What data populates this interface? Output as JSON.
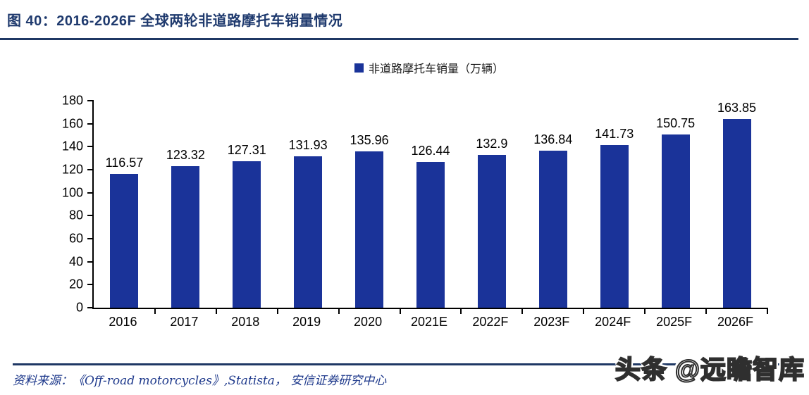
{
  "figure": {
    "title": "图 40：2016-2026F 全球两轮非道路摩托车销量情况",
    "source": "资料来源：《Off-road motorcycles》,Statista， 安信证券研究中心",
    "watermark": "头条 @远瞻智库"
  },
  "colors": {
    "bar": "#1a3399",
    "title_text": "#1f3a6e",
    "rule": "#1f3864",
    "source_text": "#1f3a8c",
    "axis": "#000000"
  },
  "chart_data": {
    "type": "bar",
    "title": "",
    "legend": "非道路摩托车销量（万辆）",
    "legend_position": "top-center",
    "categories": [
      "2016",
      "2017",
      "2018",
      "2019",
      "2020",
      "2021E",
      "2022F",
      "2023F",
      "2024F",
      "2025F",
      "2026F"
    ],
    "values": [
      116.57,
      123.32,
      127.31,
      131.93,
      135.96,
      126.44,
      132.9,
      136.84,
      141.73,
      150.75,
      163.85
    ],
    "ylabel": "",
    "xlabel": "",
    "ylim": [
      0,
      180
    ],
    "y_ticks": [
      0,
      20,
      40,
      60,
      80,
      100,
      120,
      140,
      160,
      180
    ],
    "grid": false,
    "data_labels": true
  }
}
